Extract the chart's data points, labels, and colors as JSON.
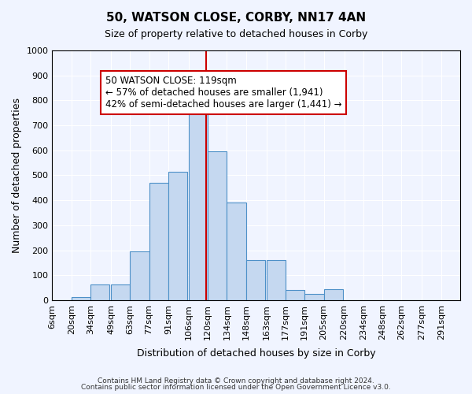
{
  "title": "50, WATSON CLOSE, CORBY, NN17 4AN",
  "subtitle": "Size of property relative to detached houses in Corby",
  "xlabel": "Distribution of detached houses by size in Corby",
  "ylabel": "Number of detached properties",
  "footnote1": "Contains HM Land Registry data © Crown copyright and database right 2024.",
  "footnote2": "Contains public sector information licensed under the Open Government Licence v3.0.",
  "bin_labels": [
    "6sqm",
    "20sqm",
    "34sqm",
    "49sqm",
    "63sqm",
    "77sqm",
    "91sqm",
    "106sqm",
    "120sqm",
    "134sqm",
    "148sqm",
    "163sqm",
    "177sqm",
    "191sqm",
    "205sqm",
    "220sqm",
    "234sqm",
    "248sqm",
    "262sqm",
    "277sqm",
    "291sqm"
  ],
  "bin_edges": [
    6,
    20,
    34,
    49,
    63,
    77,
    91,
    106,
    120,
    134,
    148,
    163,
    177,
    191,
    205,
    220,
    234,
    248,
    262,
    277,
    291
  ],
  "bar_heights": [
    0,
    13,
    62,
    62,
    195,
    470,
    515,
    755,
    595,
    390,
    160,
    160,
    42,
    25,
    45,
    0,
    0,
    0,
    0,
    0
  ],
  "bar_color": "#c5d8f0",
  "bar_edge_color": "#4d90c8",
  "vline_x": 119,
  "vline_color": "#cc0000",
  "annotation_title": "50 WATSON CLOSE: 119sqm",
  "annotation_line1": "← 57% of detached houses are smaller (1,941)",
  "annotation_line2": "42% of semi-detached houses are larger (1,441) →",
  "annotation_box_color": "#cc0000",
  "ylim": [
    0,
    1000
  ],
  "yticks": [
    0,
    100,
    200,
    300,
    400,
    500,
    600,
    700,
    800,
    900,
    1000
  ],
  "bg_color": "#f0f4ff",
  "plot_bg_color": "#f0f4ff"
}
